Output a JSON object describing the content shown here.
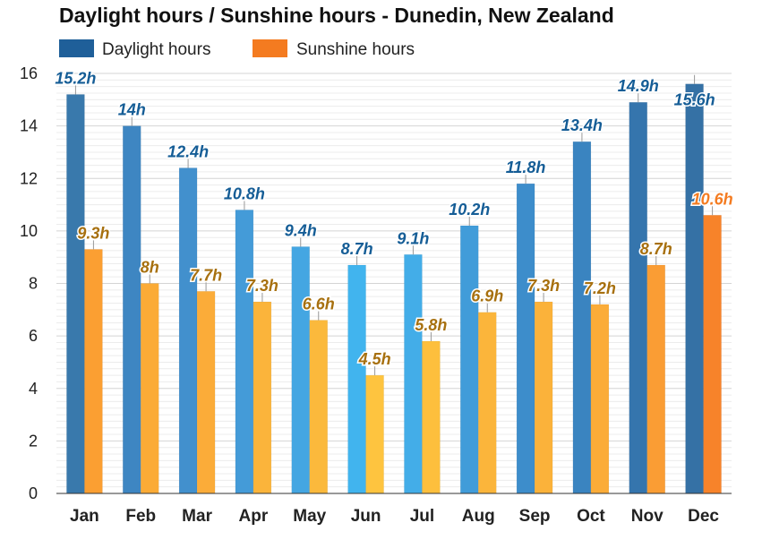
{
  "chart_data": {
    "type": "bar",
    "title": "Daylight hours / Sunshine hours - Dunedin, New Zealand",
    "xlabel": "",
    "ylabel": "",
    "ylim": [
      0,
      16
    ],
    "yticks": [
      0,
      2,
      4,
      6,
      8,
      10,
      12,
      14,
      16
    ],
    "grid": true,
    "legend_position": "top-left",
    "categories": [
      "Jan",
      "Feb",
      "Mar",
      "Apr",
      "May",
      "Jun",
      "Jul",
      "Aug",
      "Sep",
      "Oct",
      "Nov",
      "Dec"
    ],
    "series": [
      {
        "name": "Daylight hours",
        "legend_color": "#1f5f99",
        "label_color": "#155d96",
        "bar_colors": [
          "#3979ac",
          "#3e86c2",
          "#4290cd",
          "#449bd8",
          "#44a6e2",
          "#41b4ee",
          "#43ade8",
          "#419cd9",
          "#3d8dcb",
          "#3a84c0",
          "#3575ad",
          "#3571a5"
        ],
        "values": [
          15.2,
          14,
          12.4,
          10.8,
          9.4,
          8.7,
          9.1,
          10.2,
          11.8,
          13.4,
          14.9,
          15.6
        ],
        "labels": [
          "15.2h",
          "14h",
          "12.4h",
          "10.8h",
          "9.4h",
          "8.7h",
          "9.1h",
          "10.2h",
          "11.8h",
          "13.4h",
          "14.9h",
          "15.6h"
        ]
      },
      {
        "name": "Sunshine hours",
        "legend_color": "#f47b20",
        "label_colors": [
          "#a7700f",
          "#a7700f",
          "#a7700f",
          "#a7700f",
          "#a7700f",
          "#a7700f",
          "#a7700f",
          "#a7700f",
          "#a7700f",
          "#a7700f",
          "#a7700f",
          "#f47b20"
        ],
        "bar_colors": [
          "#fb9f32",
          "#fbab36",
          "#fbac39",
          "#fbb43b",
          "#fbb93c",
          "#fec43f",
          "#fdbf3d",
          "#fbb53b",
          "#fbb23a",
          "#fbac38",
          "#fa9d34",
          "#f7832a"
        ],
        "values": [
          9.3,
          8,
          7.7,
          7.3,
          6.6,
          4.5,
          5.8,
          6.9,
          7.3,
          7.2,
          8.7,
          10.6
        ],
        "labels": [
          "9.3h",
          "8h",
          "7.7h",
          "7.3h",
          "6.6h",
          "4.5h",
          "5.8h",
          "6.9h",
          "7.3h",
          "7.2h",
          "8.7h",
          "10.6h"
        ]
      }
    ]
  }
}
